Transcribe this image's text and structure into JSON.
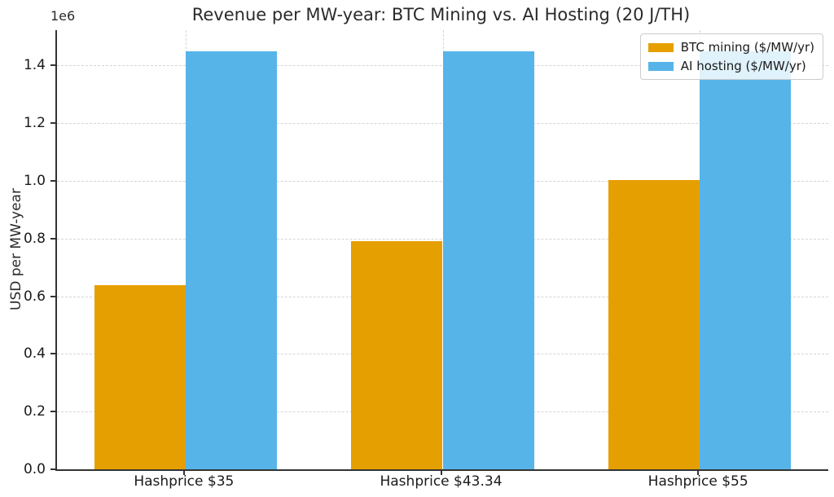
{
  "figure": {
    "background": "#ffffff",
    "axis_color": "#333333",
    "grid_color": "#d4d4d4"
  },
  "chart_data": {
    "type": "bar",
    "title": "Revenue per MW-year: BTC Mining vs. AI Hosting (20 J/TH)",
    "xlabel": "",
    "ylabel": "USD per MW-year",
    "offset_text": "1e6",
    "categories": [
      "Hashprice $35",
      "Hashprice $43.34",
      "Hashprice $55"
    ],
    "series": [
      {
        "name": "BTC mining ($/MW/yr)",
        "color": "#E69F00",
        "values": [
          638750,
          790955,
          1003750
        ]
      },
      {
        "name": "AI hosting ($/MW/yr)",
        "color": "#56B4E9",
        "values": [
          1450000,
          1450000,
          1450000
        ]
      }
    ],
    "ylim": [
      0,
      1522500
    ],
    "yticks": [
      0,
      200000,
      400000,
      600000,
      800000,
      1000000,
      1200000,
      1400000
    ],
    "ytick_labels": [
      "0.0",
      "0.2",
      "0.4",
      "0.6",
      "0.8",
      "1.0",
      "1.2",
      "1.4"
    ],
    "grid": true,
    "grid_style": "dashed",
    "legend_position": "upper right",
    "bar_width_fraction": 0.355
  }
}
